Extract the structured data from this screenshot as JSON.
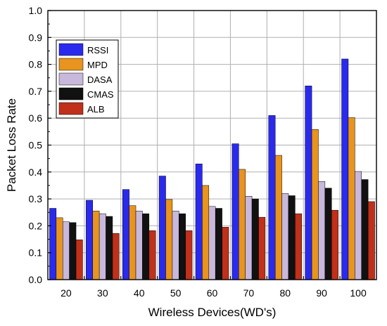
{
  "chart_data": {
    "type": "bar",
    "xlabel": "Wireless Devices(WD's)",
    "ylabel": "Packet Loss Rate",
    "ylim": [
      0,
      1.0
    ],
    "yticks": [
      "0.0",
      "0.1",
      "0.2",
      "0.3",
      "0.4",
      "0.5",
      "0.6",
      "0.7",
      "0.8",
      "0.9",
      "1.0"
    ],
    "categories": [
      "20",
      "30",
      "40",
      "50",
      "60",
      "70",
      "80",
      "90",
      "100"
    ],
    "grid": true,
    "legend_position": "top-left",
    "series": [
      {
        "name": "RSSI",
        "color": "#2a2aee",
        "values": [
          0.265,
          0.295,
          0.335,
          0.385,
          0.43,
          0.505,
          0.61,
          0.72,
          0.82
        ]
      },
      {
        "name": "MPD",
        "color": "#e8941e",
        "values": [
          0.23,
          0.255,
          0.275,
          0.298,
          0.35,
          0.41,
          0.462,
          0.558,
          0.602
        ]
      },
      {
        "name": "DASA",
        "color": "#c8b8dc",
        "values": [
          0.215,
          0.245,
          0.255,
          0.255,
          0.272,
          0.31,
          0.32,
          0.365,
          0.402
        ]
      },
      {
        "name": "CMAS",
        "color": "#111111",
        "values": [
          0.212,
          0.235,
          0.245,
          0.245,
          0.265,
          0.3,
          0.312,
          0.34,
          0.372
        ]
      },
      {
        "name": "ALB",
        "color": "#c0301a",
        "values": [
          0.148,
          0.172,
          0.182,
          0.182,
          0.195,
          0.232,
          0.245,
          0.258,
          0.29
        ]
      }
    ]
  }
}
